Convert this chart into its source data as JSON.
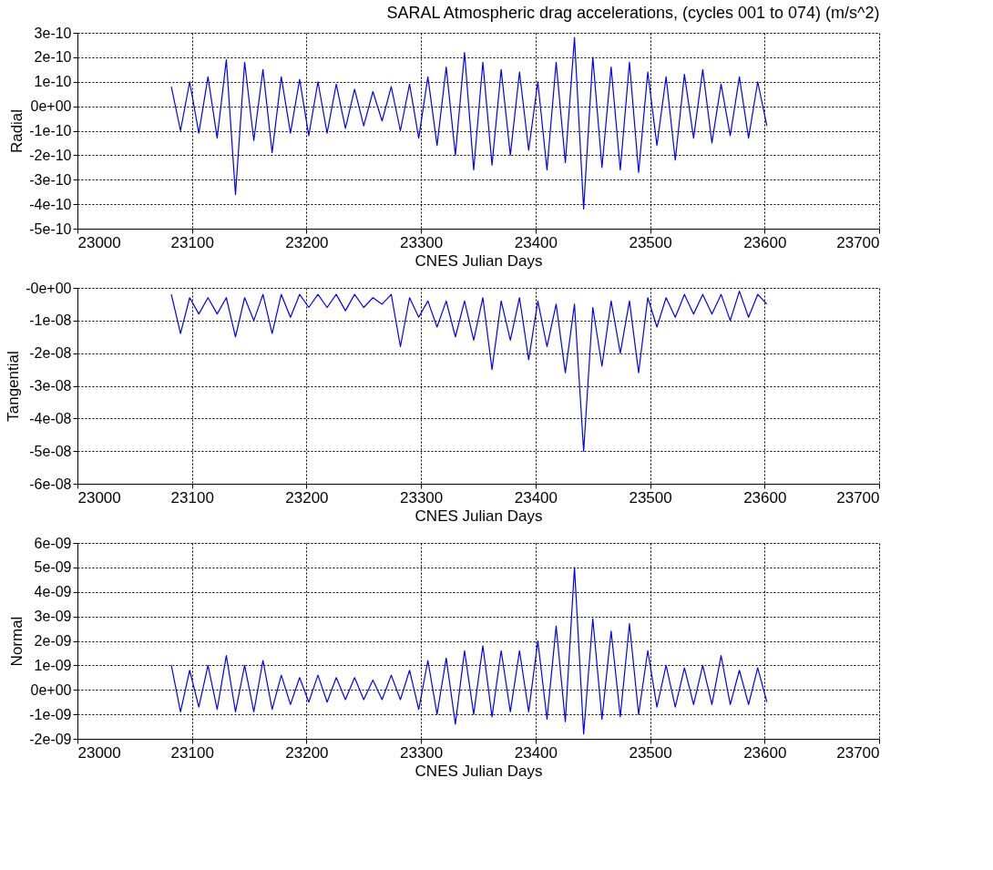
{
  "chart_data": [
    {
      "type": "line",
      "title": "SARAL Atmospheric drag accelerations, (cycles 001 to 074) (m/s^2)",
      "xlabel": "CNES Julian Days",
      "ylabel": "Radial",
      "grid": true,
      "xlim": [
        23000,
        23700
      ],
      "xticks": [
        23000,
        23100,
        23200,
        23300,
        23400,
        23500,
        23600,
        23700
      ],
      "ylim": [
        -5e-10,
        3e-10
      ],
      "yticks": [
        {
          "value": 3e-10,
          "label": "3e-10"
        },
        {
          "value": 2e-10,
          "label": "2e-10"
        },
        {
          "value": 1e-10,
          "label": "1e-10"
        },
        {
          "value": 0,
          "label": "0e+00"
        },
        {
          "value": -1e-10,
          "label": "-1e-10"
        },
        {
          "value": -2e-10,
          "label": "-2e-10"
        },
        {
          "value": -3e-10,
          "label": "-3e-10"
        },
        {
          "value": -4e-10,
          "label": "-4e-10"
        },
        {
          "value": -5e-10,
          "label": "-5e-10"
        }
      ],
      "x": [
        23082,
        23090,
        23098,
        23106,
        23114,
        23122,
        23130,
        23138,
        23146,
        23154,
        23162,
        23170,
        23178,
        23186,
        23194,
        23202,
        23210,
        23218,
        23226,
        23234,
        23242,
        23250,
        23258,
        23266,
        23274,
        23282,
        23290,
        23298,
        23306,
        23314,
        23322,
        23330,
        23338,
        23346,
        23354,
        23362,
        23370,
        23378,
        23386,
        23394,
        23402,
        23410,
        23418,
        23426,
        23434,
        23442,
        23450,
        23458,
        23466,
        23474,
        23482,
        23490,
        23498,
        23506,
        23514,
        23522,
        23530,
        23538,
        23546,
        23554,
        23562,
        23570,
        23578,
        23586,
        23594,
        23602
      ],
      "series": [
        {
          "color": "#0000ff",
          "values": [
            8e-11,
            -1e-10,
            1e-10,
            -1.1e-10,
            1.2e-10,
            -1.3e-10,
            1.9e-10,
            -3.6e-10,
            1.8e-10,
            -1.4e-10,
            1.5e-10,
            -1.9e-10,
            1.2e-10,
            -1.1e-10,
            1.1e-10,
            -1.2e-10,
            1e-10,
            -1.1e-10,
            9e-11,
            -9e-11,
            7e-11,
            -8e-11,
            6e-11,
            -6e-11,
            8e-11,
            -1e-10,
            9e-11,
            -1.3e-10,
            1.2e-10,
            -1.6e-10,
            1.6e-10,
            -2e-10,
            2.2e-10,
            -2.6e-10,
            1.8e-10,
            -2.4e-10,
            1.5e-10,
            -2e-10,
            1.4e-10,
            -1.8e-10,
            1e-10,
            -2.6e-10,
            1.8e-10,
            -2.3e-10,
            2.8e-10,
            -4.2e-10,
            2e-10,
            -2.5e-10,
            1.6e-10,
            -2.6e-10,
            1.8e-10,
            -2.7e-10,
            1.4e-10,
            -1.6e-10,
            1.2e-10,
            -2.2e-10,
            1.3e-10,
            -1.3e-10,
            1.5e-10,
            -1.5e-10,
            9e-11,
            -1.2e-10,
            1.2e-10,
            -1.3e-10,
            1e-10,
            -8e-11
          ]
        }
      ]
    },
    {
      "type": "line",
      "xlabel": "CNES Julian Days",
      "ylabel": "Tangential",
      "grid": true,
      "xlim": [
        23000,
        23700
      ],
      "xticks": [
        23000,
        23100,
        23200,
        23300,
        23400,
        23500,
        23600,
        23700
      ],
      "ylim": [
        -6e-08,
        0
      ],
      "yticks": [
        {
          "value": 0,
          "label": "-0e+00"
        },
        {
          "value": -1e-08,
          "label": "-1e-08"
        },
        {
          "value": -2e-08,
          "label": "-2e-08"
        },
        {
          "value": -3e-08,
          "label": "-3e-08"
        },
        {
          "value": -4e-08,
          "label": "-4e-08"
        },
        {
          "value": -5e-08,
          "label": "-5e-08"
        },
        {
          "value": -6e-08,
          "label": "-6e-08"
        }
      ],
      "x": [
        23082,
        23090,
        23098,
        23106,
        23114,
        23122,
        23130,
        23138,
        23146,
        23154,
        23162,
        23170,
        23178,
        23186,
        23194,
        23202,
        23210,
        23218,
        23226,
        23234,
        23242,
        23250,
        23258,
        23266,
        23274,
        23282,
        23290,
        23298,
        23306,
        23314,
        23322,
        23330,
        23338,
        23346,
        23354,
        23362,
        23370,
        23378,
        23386,
        23394,
        23402,
        23410,
        23418,
        23426,
        23434,
        23442,
        23450,
        23458,
        23466,
        23474,
        23482,
        23490,
        23498,
        23506,
        23514,
        23522,
        23530,
        23538,
        23546,
        23554,
        23562,
        23570,
        23578,
        23586,
        23594,
        23602
      ],
      "series": [
        {
          "color": "#0000ff",
          "values": [
            -2e-09,
            -1.4e-08,
            -3e-09,
            -8e-09,
            -3e-09,
            -8e-09,
            -3e-09,
            -1.5e-08,
            -3e-09,
            -1e-08,
            -2e-09,
            -1.4e-08,
            -2e-09,
            -9e-09,
            -2e-09,
            -6e-09,
            -2e-09,
            -6e-09,
            -2e-09,
            -7e-09,
            -2e-09,
            -6e-09,
            -3e-09,
            -5e-09,
            -2e-09,
            -1.8e-08,
            -3e-09,
            -9e-09,
            -4e-09,
            -1.2e-08,
            -4e-09,
            -1.5e-08,
            -4e-09,
            -1.6e-08,
            -3e-09,
            -2.5e-08,
            -4e-09,
            -1.6e-08,
            -3e-09,
            -2.2e-08,
            -4e-09,
            -1.8e-08,
            -5e-09,
            -2.6e-08,
            -5e-09,
            -5e-08,
            -6e-09,
            -2.4e-08,
            -4e-09,
            -2e-08,
            -4e-09,
            -2.6e-08,
            -3e-09,
            -1.2e-08,
            -3e-09,
            -9e-09,
            -2e-09,
            -8e-09,
            -2e-09,
            -8e-09,
            -2e-09,
            -1e-08,
            -1e-09,
            -9e-09,
            -2e-09,
            -5e-09
          ]
        }
      ]
    },
    {
      "type": "line",
      "xlabel": "CNES Julian Days",
      "ylabel": "Normal",
      "grid": true,
      "xlim": [
        23000,
        23700
      ],
      "xticks": [
        23000,
        23100,
        23200,
        23300,
        23400,
        23500,
        23600,
        23700
      ],
      "ylim": [
        -2e-09,
        6e-09
      ],
      "yticks": [
        {
          "value": 6e-09,
          "label": "6e-09"
        },
        {
          "value": 5e-09,
          "label": "5e-09"
        },
        {
          "value": 4e-09,
          "label": "4e-09"
        },
        {
          "value": 3e-09,
          "label": "3e-09"
        },
        {
          "value": 2e-09,
          "label": "2e-09"
        },
        {
          "value": 1e-09,
          "label": "1e-09"
        },
        {
          "value": 0,
          "label": "0e+00"
        },
        {
          "value": -1e-09,
          "label": "-1e-09"
        },
        {
          "value": -2e-09,
          "label": "-2e-09"
        }
      ],
      "x": [
        23082,
        23090,
        23098,
        23106,
        23114,
        23122,
        23130,
        23138,
        23146,
        23154,
        23162,
        23170,
        23178,
        23186,
        23194,
        23202,
        23210,
        23218,
        23226,
        23234,
        23242,
        23250,
        23258,
        23266,
        23274,
        23282,
        23290,
        23298,
        23306,
        23314,
        23322,
        23330,
        23338,
        23346,
        23354,
        23362,
        23370,
        23378,
        23386,
        23394,
        23402,
        23410,
        23418,
        23426,
        23434,
        23442,
        23450,
        23458,
        23466,
        23474,
        23482,
        23490,
        23498,
        23506,
        23514,
        23522,
        23530,
        23538,
        23546,
        23554,
        23562,
        23570,
        23578,
        23586,
        23594,
        23602
      ],
      "series": [
        {
          "color": "#0000ff",
          "values": [
            1e-09,
            -9e-10,
            8e-10,
            -7e-10,
            1e-09,
            -8e-10,
            1.4e-09,
            -9e-10,
            1e-09,
            -9e-10,
            1.2e-09,
            -8e-10,
            6e-10,
            -6e-10,
            5e-10,
            -5e-10,
            6e-10,
            -5e-10,
            5e-10,
            -4e-10,
            5e-10,
            -4e-10,
            4e-10,
            -4e-10,
            6e-10,
            -4e-10,
            8e-10,
            -8e-10,
            1.2e-09,
            -1e-09,
            1.3e-09,
            -1.4e-09,
            1.6e-09,
            -1e-09,
            1.8e-09,
            -1.1e-09,
            1.6e-09,
            -9e-10,
            1.6e-09,
            -9e-10,
            2e-09,
            -1.2e-09,
            2.6e-09,
            -1.3e-09,
            5e-09,
            -1.8e-09,
            2.9e-09,
            -1.2e-09,
            2.4e-09,
            -1.1e-09,
            2.7e-09,
            -1e-09,
            1.6e-09,
            -7e-10,
            1e-09,
            -7e-10,
            9e-10,
            -6e-10,
            1e-09,
            -6e-10,
            1.4e-09,
            -6e-10,
            8e-10,
            -6e-10,
            9e-10,
            -5e-10
          ]
        }
      ]
    }
  ]
}
